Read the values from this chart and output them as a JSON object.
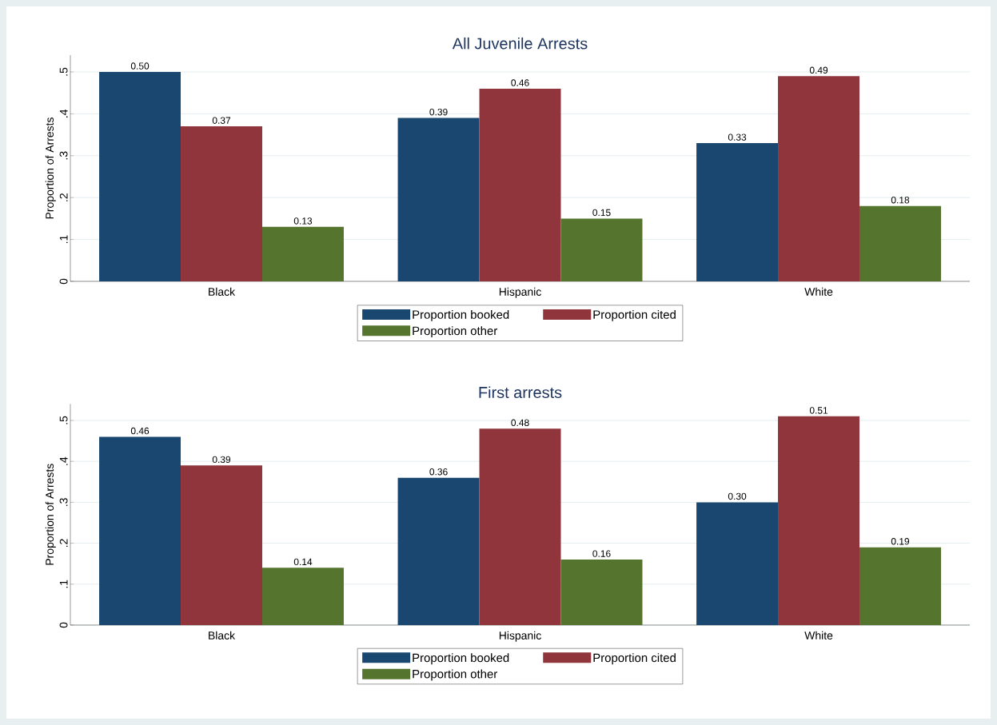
{
  "chart_data": [
    {
      "type": "bar",
      "title": "All Juvenile Arrests",
      "ylabel": "Proportion of Arrests",
      "categories": [
        "Black",
        "Hispanic",
        "White"
      ],
      "series": [
        {
          "name": "Proportion booked",
          "color": "#1a476f",
          "values": [
            0.5,
            0.39,
            0.33
          ],
          "value_labels": [
            "0.50",
            "0.39",
            "0.33"
          ]
        },
        {
          "name": "Proportion cited",
          "color": "#90353b",
          "values": [
            0.37,
            0.46,
            0.49
          ],
          "value_labels": [
            "0.37",
            "0.46",
            "0.49"
          ]
        },
        {
          "name": "Proportion other",
          "color": "#55752f",
          "values": [
            0.13,
            0.15,
            0.18
          ],
          "value_labels": [
            "0.13",
            "0.15",
            "0.18"
          ]
        }
      ],
      "ylim": [
        0,
        0.54
      ],
      "yticks": [
        0,
        {
          "value": 0.1,
          "label": ".1"
        },
        {
          "value": 0.2,
          "label": ".2"
        },
        {
          "value": 0.3,
          "label": ".3"
        },
        {
          "value": 0.4,
          "label": ".4"
        },
        {
          "value": 0.5,
          "label": ".5"
        }
      ],
      "grid": "y",
      "legend": "bottom"
    },
    {
      "type": "bar",
      "title": "First arrests",
      "ylabel": "Proportion of Arrests",
      "categories": [
        "Black",
        "Hispanic",
        "White"
      ],
      "series": [
        {
          "name": "Proportion booked",
          "color": "#1a476f",
          "values": [
            0.46,
            0.36,
            0.3
          ],
          "value_labels": [
            "0.46",
            "0.36",
            "0.30"
          ]
        },
        {
          "name": "Proportion cited",
          "color": "#90353b",
          "values": [
            0.39,
            0.48,
            0.51
          ],
          "value_labels": [
            "0.39",
            "0.48",
            "0.51"
          ]
        },
        {
          "name": "Proportion other",
          "color": "#55752f",
          "values": [
            0.14,
            0.16,
            0.19
          ],
          "value_labels": [
            "0.14",
            "0.16",
            "0.19"
          ]
        }
      ],
      "ylim": [
        0,
        0.54
      ],
      "yticks": [
        0,
        {
          "value": 0.1,
          "label": ".1"
        },
        {
          "value": 0.2,
          "label": ".2"
        },
        {
          "value": 0.3,
          "label": ".3"
        },
        {
          "value": 0.4,
          "label": ".4"
        },
        {
          "value": 0.5,
          "label": ".5"
        }
      ],
      "grid": "y",
      "legend": "bottom"
    }
  ]
}
